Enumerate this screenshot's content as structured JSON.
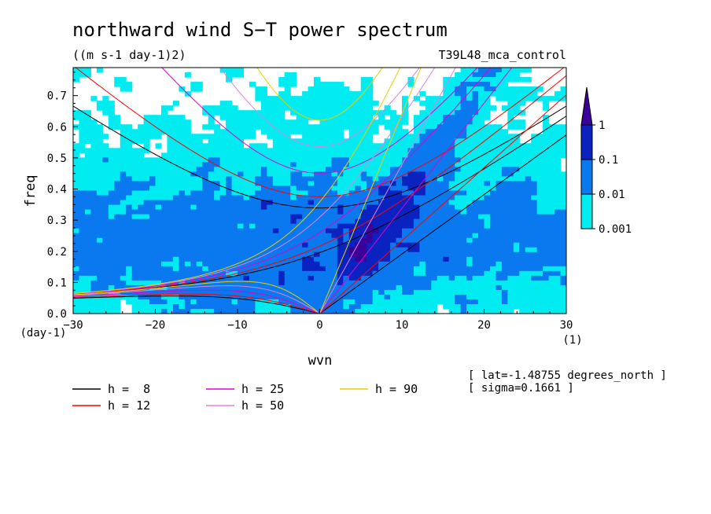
{
  "chart_data": {
    "type": "heatmap",
    "title": "northward wind S−T power spectrum",
    "subtitle": "((m s-1 day-1)2)",
    "run_label": "T39L48_mca_control",
    "xlabel": "wvn",
    "ylabel": "freq",
    "x_unit": "(1)",
    "y_unit": "(day-1)",
    "xlim": [
      -30,
      30
    ],
    "ylim": [
      0,
      0.79
    ],
    "xticks": [
      -30,
      -20,
      -10,
      0,
      10,
      20,
      30
    ],
    "yticks": [
      0.0,
      0.1,
      0.2,
      0.3,
      0.4,
      0.5,
      0.6,
      0.7
    ],
    "colorbar": {
      "levels": [
        "0.001",
        "0.01",
        "0.1",
        "1"
      ],
      "colors": [
        "#00ecf0",
        "#0a78ee",
        "#0a23c0",
        "#3b0098"
      ]
    },
    "dispersion_curves": [
      {
        "label": "h =  8",
        "color": "#000000"
      },
      {
        "label": "h = 12",
        "color": "#ff0000"
      },
      {
        "label": "h = 25",
        "color": "#e000d0"
      },
      {
        "label": "h = 50",
        "color": "#e080e0"
      },
      {
        "label": "h = 90",
        "color": "#e8d000"
      }
    ],
    "info": [
      "[ lat=-1.48755 degrees_north ]",
      "[ sigma=0.1661 ]"
    ]
  }
}
